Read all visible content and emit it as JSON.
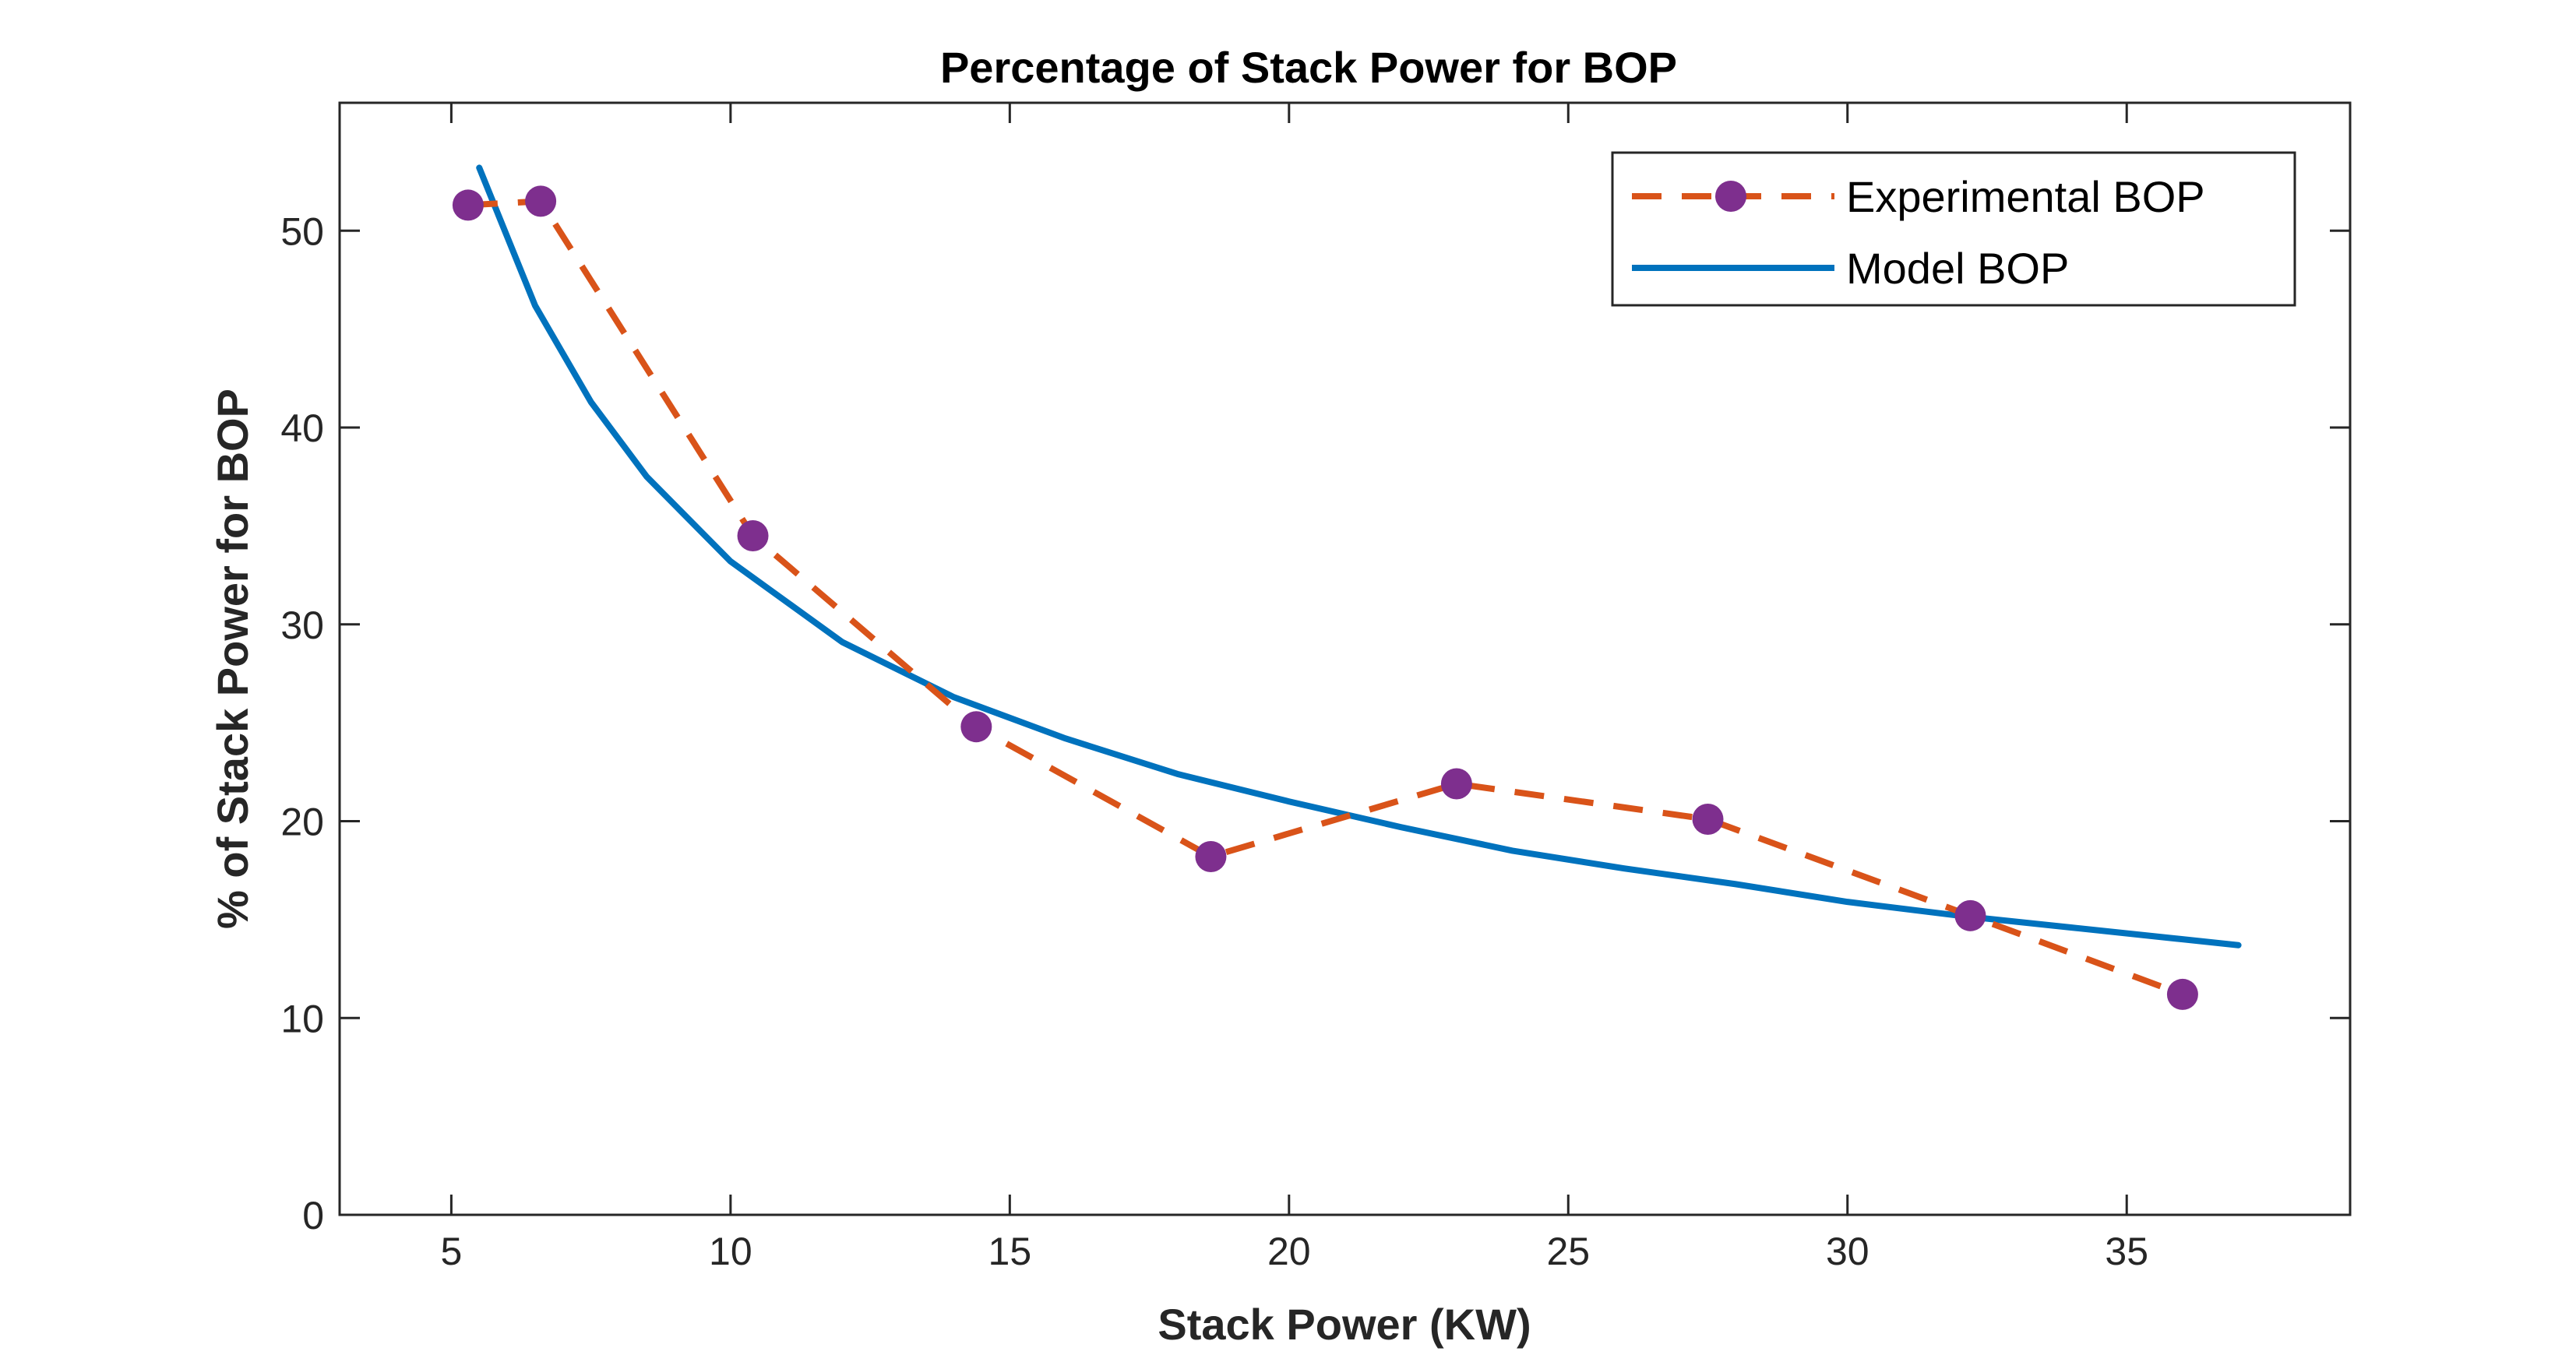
{
  "chart_data": {
    "type": "line",
    "title": "Percentage of Stack Power for BOP",
    "xlabel": "Stack Power (KW)",
    "ylabel": "% of Stack Power for BOP",
    "xlim": [
      3,
      39
    ],
    "ylim": [
      0,
      56.5
    ],
    "xticks": [
      5,
      10,
      15,
      20,
      25,
      30,
      35
    ],
    "yticks": [
      0,
      10,
      20,
      30,
      40,
      50
    ],
    "grid": false,
    "legend_position": "top-right",
    "series": [
      {
        "name": "Experimental BOP",
        "style": "dashed-with-markers",
        "color": "#D95319",
        "marker_color": "#7E2F8E",
        "x": [
          5.3,
          6.6,
          10.4,
          14.4,
          18.6,
          23.0,
          27.5,
          32.2,
          36.0
        ],
        "y": [
          51.3,
          51.5,
          34.5,
          24.8,
          18.2,
          21.9,
          20.1,
          15.2,
          11.2
        ]
      },
      {
        "name": "Model BOP",
        "style": "solid",
        "color": "#0072BD",
        "x": [
          5.5,
          6.5,
          7.5,
          8.5,
          10,
          12,
          14,
          16,
          18,
          20,
          22,
          24,
          26,
          28,
          30,
          32,
          34,
          36,
          37
        ],
        "y": [
          53.2,
          46.2,
          41.3,
          37.5,
          33.2,
          29.1,
          26.3,
          24.2,
          22.4,
          21.0,
          19.7,
          18.5,
          17.6,
          16.8,
          15.9,
          15.2,
          14.6,
          14.0,
          13.7
        ]
      }
    ]
  }
}
